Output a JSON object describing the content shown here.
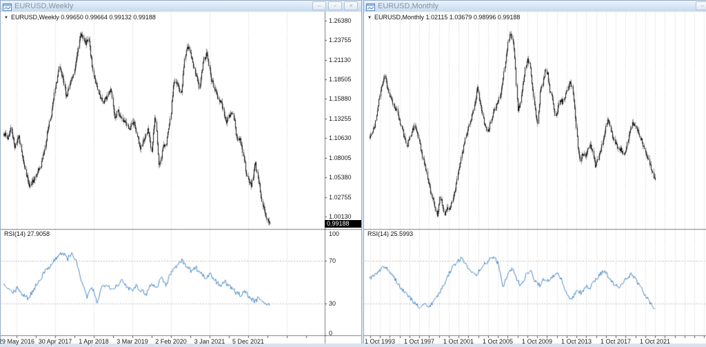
{
  "colors": {
    "titlebar_top": "#eaf3fc",
    "titlebar_bottom": "#c6daee",
    "title_text": "#8494a3",
    "chart_bg": "#ffffff",
    "grid": "#c9c9c9",
    "candle_body": "#151515",
    "candle_wick": "#9a9a9a",
    "rsi_line": "#4a8ac4",
    "frame": "#7d7d7d",
    "badge_bg": "#000000",
    "badge_text": "#ffffff",
    "mdi_bg": "#d9e3f0"
  },
  "windows": [
    {
      "title": "EURUSD,Weekly",
      "titlebar_buttons": [
        {
          "name": "minimize",
          "glyph": "–"
        },
        {
          "name": "restore",
          "glyph": "▫"
        },
        {
          "name": "close",
          "glyph": "×"
        }
      ],
      "info_line": {
        "arrow": "▼",
        "text": "EURUSD,Weekly 0.99650 0.99664 0.99132 0.99188"
      },
      "indicator_label": "RSI(14) 27.9058",
      "price_axis": {
        "labels": [
          "1.26380",
          "1.23755",
          "1.21130",
          "1.18505",
          "1.15880",
          "1.13255",
          "1.10630",
          "1.08005",
          "1.05380",
          "1.02755",
          "1.00130"
        ],
        "current": "0.99188"
      },
      "rsi_axis": {
        "labels": [
          "100",
          "70",
          "30",
          "0"
        ],
        "values": [
          100,
          70,
          30,
          0
        ]
      },
      "date_labels": [
        "29 May 2016",
        "30 Apr 2017",
        "1 Apr 2018",
        "3 Mar 2019",
        "2 Feb 2020",
        "3 Jan 2021",
        "5 Dec 2021"
      ],
      "chart_data": {
        "type": "candlestick+rsi_line",
        "symbol": "EURUSD",
        "timeframe": "Weekly",
        "last_bar": {
          "open": 0.9965,
          "high": 0.99664,
          "low": 0.99132,
          "close": 0.99188
        },
        "visible_price_range": [
          0.9847,
          1.2755
        ],
        "price_tick_step": 0.02625,
        "x_range": [
          "29 May 2016",
          "Sep 2022"
        ],
        "approx_close_anchors": [
          1.115,
          1.105,
          1.12,
          1.095,
          1.11,
          1.085,
          1.06,
          1.04,
          1.05,
          1.062,
          1.068,
          1.09,
          1.12,
          1.142,
          1.175,
          1.2,
          1.185,
          1.162,
          1.18,
          1.192,
          1.225,
          1.248,
          1.232,
          1.238,
          1.2,
          1.178,
          1.16,
          1.155,
          1.162,
          1.175,
          1.136,
          1.142,
          1.132,
          1.126,
          1.118,
          1.13,
          1.112,
          1.092,
          1.105,
          1.118,
          1.088,
          1.138,
          1.068,
          1.092,
          1.102,
          1.128,
          1.182,
          1.178,
          1.165,
          1.215,
          1.232,
          1.208,
          1.19,
          1.172,
          1.212,
          1.22,
          1.188,
          1.174,
          1.16,
          1.154,
          1.128,
          1.136,
          1.142,
          1.108,
          1.104,
          1.08,
          1.05,
          1.044,
          1.074,
          1.048,
          1.018,
          0.998,
          0.9919
        ],
        "rsi": {
          "period": 14,
          "current": 27.9058,
          "levels": [
            70,
            30
          ],
          "range": [
            0,
            100
          ],
          "approx_anchors": [
            48,
            43,
            40,
            45,
            37,
            35,
            42,
            50,
            57,
            63,
            69,
            74,
            78,
            72,
            77,
            66,
            48,
            36,
            45,
            31,
            46,
            49,
            43,
            47,
            51,
            46,
            43,
            47,
            42,
            39,
            49,
            44,
            55,
            47,
            59,
            65,
            71,
            66,
            61,
            64,
            59,
            54,
            57,
            51,
            47,
            50,
            45,
            41,
            38,
            42,
            35,
            32,
            36,
            30,
            27.9
          ]
        },
        "grid": "vertical dotted yearly",
        "legend_position": "none"
      }
    },
    {
      "title": "EURUSD,Monthly",
      "titlebar_buttons": [
        {
          "name": "minimize",
          "glyph": "–"
        }
      ],
      "info_line": {
        "arrow": "▼",
        "text": "EURUSD,Monthly 1.02115 1.03679 0.98996 0.99188"
      },
      "indicator_label": "RSI(14) 25.5993",
      "price_axis": {
        "labels": [],
        "current": ""
      },
      "rsi_axis": {
        "labels": [],
        "values": []
      },
      "date_labels": [
        "1 Oct 1993",
        "1 Oct 1997",
        "1 Oct 2001",
        "1 Oct 2005",
        "1 Oct 2009",
        "1 Oct 2013",
        "1 Oct 2017",
        "1 Oct 2021"
      ],
      "chart_data": {
        "type": "candlestick+rsi_line",
        "symbol": "EURUSD",
        "timeframe": "Monthly",
        "last_bar": {
          "open": 1.02115,
          "high": 1.03679,
          "low": 0.98996,
          "close": 0.99188
        },
        "visible_price_range": [
          0.795,
          1.66
        ],
        "x_range": [
          "1 Oct 1993",
          "Oct 2022"
        ],
        "approx_close_anchors": [
          1.16,
          1.18,
          1.21,
          1.27,
          1.33,
          1.38,
          1.41,
          1.36,
          1.32,
          1.3,
          1.28,
          1.26,
          1.22,
          1.19,
          1.15,
          1.13,
          1.16,
          1.19,
          1.21,
          1.17,
          1.14,
          1.08,
          1.05,
          1.0,
          0.96,
          0.92,
          0.88,
          0.845,
          0.93,
          0.89,
          0.855,
          0.885,
          0.87,
          0.91,
          0.95,
          1.0,
          1.06,
          1.1,
          1.15,
          1.19,
          1.22,
          1.26,
          1.3,
          1.355,
          1.3,
          1.25,
          1.21,
          1.185,
          1.21,
          1.24,
          1.28,
          1.3,
          1.33,
          1.38,
          1.45,
          1.52,
          1.58,
          1.55,
          1.47,
          1.27,
          1.29,
          1.36,
          1.43,
          1.48,
          1.44,
          1.35,
          1.27,
          1.22,
          1.34,
          1.37,
          1.43,
          1.41,
          1.34,
          1.31,
          1.25,
          1.27,
          1.31,
          1.3,
          1.33,
          1.36,
          1.38,
          1.35,
          1.26,
          1.13,
          1.07,
          1.1,
          1.09,
          1.11,
          1.13,
          1.1,
          1.05,
          1.07,
          1.1,
          1.14,
          1.18,
          1.24,
          1.2,
          1.165,
          1.135,
          1.125,
          1.115,
          1.1,
          1.095,
          1.14,
          1.19,
          1.22,
          1.205,
          1.19,
          1.16,
          1.135,
          1.11,
          1.08,
          1.045,
          1.02,
          0.992
        ],
        "rsi": {
          "period": 14,
          "current": 25.5993,
          "levels": [
            70,
            30
          ],
          "range": [
            0,
            100
          ],
          "approx_anchors": [
            53,
            56,
            60,
            64,
            62,
            57,
            50,
            44,
            39,
            34,
            29,
            26,
            31,
            26,
            33,
            38,
            46,
            56,
            64,
            70,
            72,
            66,
            59,
            56,
            62,
            67,
            71,
            74,
            67,
            46,
            56,
            63,
            53,
            46,
            57,
            60,
            51,
            47,
            54,
            51,
            56,
            58,
            49,
            37,
            34,
            42,
            40,
            46,
            45,
            52,
            57,
            61,
            54,
            48,
            45,
            50,
            54,
            58,
            51,
            44,
            37,
            30,
            25.6
          ]
        },
        "grid": "vertical dotted yearly",
        "legend_position": "none"
      }
    }
  ]
}
